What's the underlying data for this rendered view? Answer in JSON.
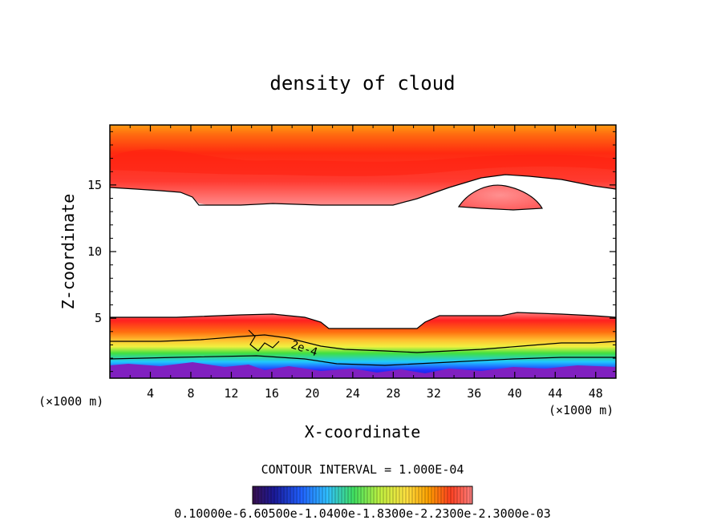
{
  "chart_data": {
    "type": "heatmap",
    "title": "density of cloud",
    "xlabel": "X-coordinate",
    "ylabel": "Z-coordinate",
    "x_unit_left": "(×1000 m)",
    "x_unit_right": "(×1000 m)",
    "xlim": [
      0,
      50
    ],
    "ylim": [
      0.5,
      19.5
    ],
    "x_ticks": [
      4,
      8,
      12,
      16,
      20,
      24,
      28,
      32,
      36,
      40,
      44,
      48
    ],
    "y_ticks": [
      5,
      10,
      15
    ],
    "contour_interval_text": "CONTOUR INTERVAL = 1.000E-04",
    "contour_label": "2e-4",
    "colorbar_label": "0.10000e-6.60500e-1.0400e-1.8300e-2.2300e-2.3000e-03",
    "colorbar_colors": [
      "#3a1050",
      "#1a1a9a",
      "#2060ff",
      "#30c0ff",
      "#40e060",
      "#c0f040",
      "#ffe040",
      "#ffa000",
      "#ff4020",
      "#ff8080"
    ],
    "field_colors": {
      "low": "#8020c0",
      "blue": "#2030ff",
      "cyan": "#20c8ff",
      "green": "#30e040",
      "yellow": "#f0f040",
      "orange": "#ffa020",
      "red": "#ff2020",
      "pink": "#ff8c8c",
      "top": "#ff9a10"
    }
  }
}
